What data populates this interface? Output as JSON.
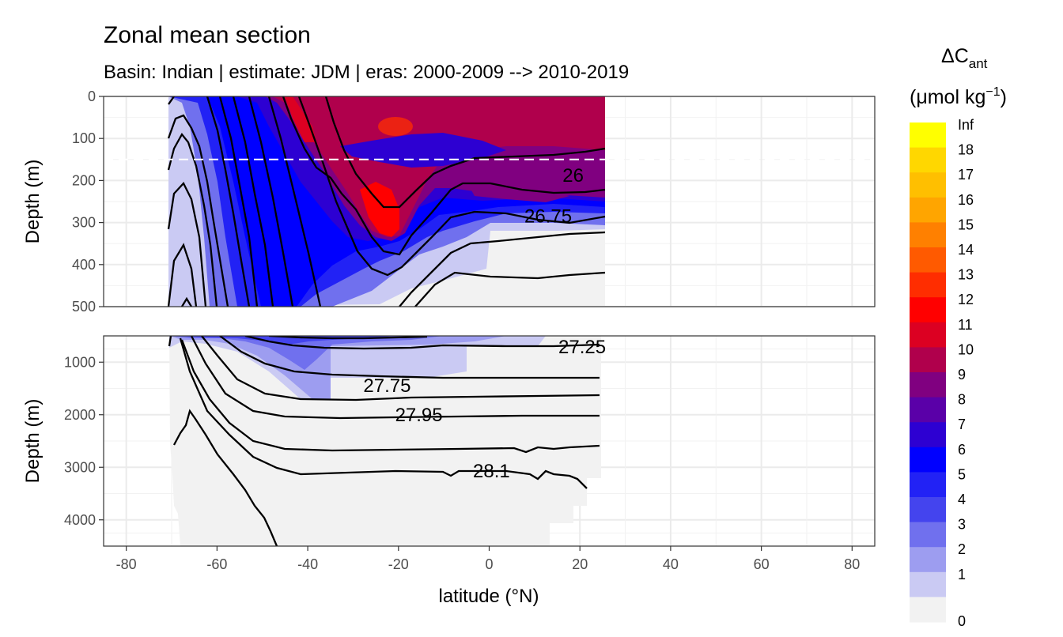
{
  "chart_data": {
    "type": "heatmap",
    "title": "Zonal mean section",
    "subtitle": "Basin: Indian | estimate: JDM  | eras: 2000-2009 --> 2010-2019",
    "xlabel": "latitude (°N)",
    "xlim": [
      -85,
      85
    ],
    "xticks": [
      -80,
      -60,
      -40,
      -20,
      0,
      20,
      40,
      60,
      80
    ],
    "x_ticklabels": [
      "-80",
      "-60",
      "-40",
      "-20",
      "0",
      "20",
      "40",
      "60",
      "80"
    ],
    "data_xrange": [
      -70,
      25
    ],
    "panels": [
      {
        "ylabel": "Depth (m)",
        "ylim": [
          0,
          500
        ],
        "yticks": [
          0,
          100,
          200,
          300,
          400,
          500
        ],
        "y_ticklabels": [
          "0",
          "100",
          "200",
          "300",
          "400",
          "500"
        ],
        "reference_depth": 150,
        "contour_labels": [
          {
            "text": "26",
            "lat": 18.5,
            "depth": 188
          },
          {
            "text": "26.75",
            "lat": 13,
            "depth": 285
          }
        ]
      },
      {
        "ylabel": "Depth (m)",
        "ylim": [
          500,
          4500
        ],
        "yticks": [
          1000,
          2000,
          3000,
          4000
        ],
        "y_ticklabels": [
          "1000",
          "2000",
          "3000",
          "4000"
        ],
        "contour_labels": [
          {
            "text": "27.25",
            "lat": 20.5,
            "depth": 710
          },
          {
            "text": "27.75",
            "lat": -22.5,
            "depth": 1450
          },
          {
            "text": "27.95",
            "lat": -15.5,
            "depth": 2000
          },
          {
            "text": "28.1",
            "lat": 0.5,
            "depth": 3070
          }
        ]
      }
    ],
    "legend": {
      "title_main": "ΔC",
      "title_sub": "ant",
      "unit_main": "(μmol kg",
      "unit_sup": "−1",
      "unit_end": ")",
      "position": "right",
      "labels": [
        "Inf",
        "18",
        "17",
        "16",
        "15",
        "14",
        "13",
        "12",
        "11",
        "10",
        "9",
        "8",
        "7",
        "6",
        "5",
        "4",
        "3",
        "2",
        "1",
        "0"
      ],
      "colors": [
        "#ffff00",
        "#ffd700",
        "#ffbf00",
        "#ffa500",
        "#ff8000",
        "#ff5a00",
        "#ff2d00",
        "#ff0000",
        "#dc0022",
        "#b0004c",
        "#800080",
        "#5a00a8",
        "#2d00d2",
        "#0000ff",
        "#2222f5",
        "#4444ee",
        "#7070ee",
        "#9d9df0",
        "#cacaf3",
        "#f2f2f2"
      ]
    },
    "grid": true
  }
}
